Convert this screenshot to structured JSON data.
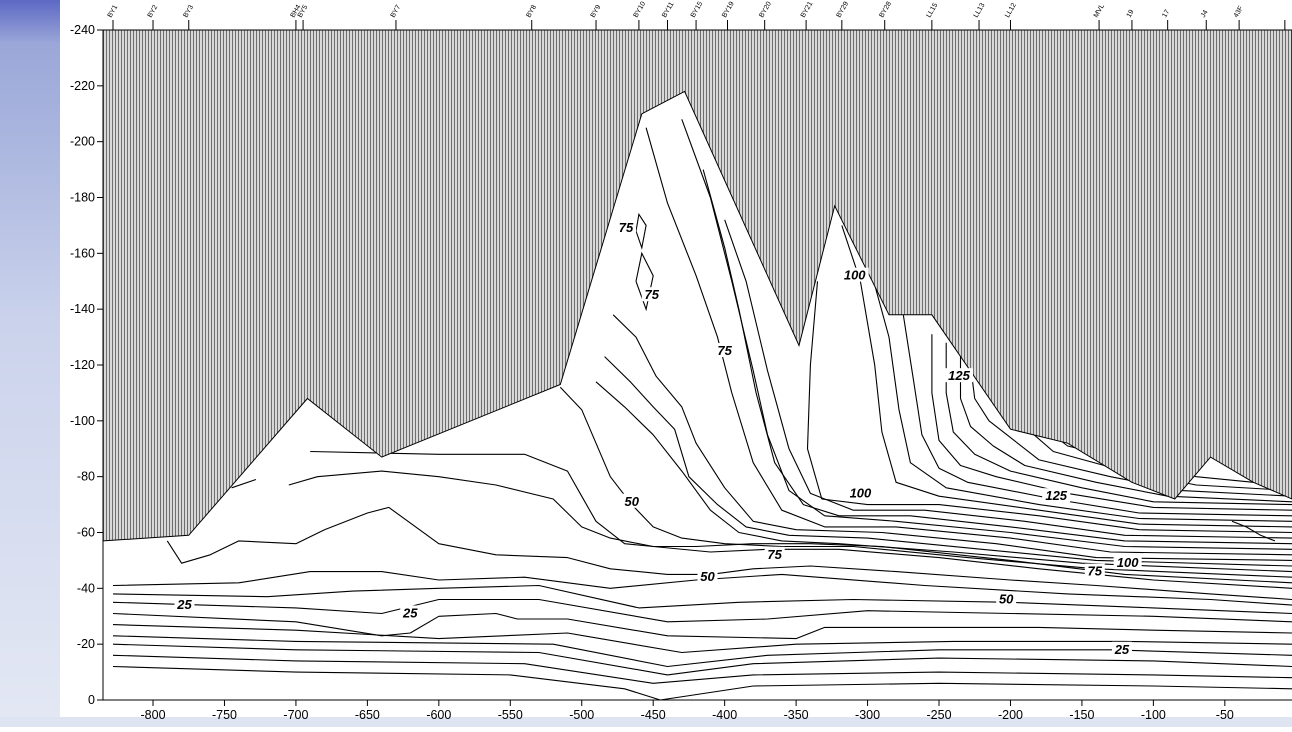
{
  "chart_data": {
    "type": "contour",
    "title": "",
    "xlabel": "",
    "ylabel": "",
    "xlim": [
      -835,
      -3
    ],
    "ylim": [
      -240,
      0
    ],
    "x_ticks": [
      -800,
      -750,
      -700,
      -650,
      -600,
      -550,
      -500,
      -450,
      -400,
      -350,
      -300,
      -250,
      -200,
      -150,
      -100,
      -50
    ],
    "y_ticks": [
      0,
      -20,
      -40,
      -60,
      -80,
      -100,
      -120,
      -140,
      -160,
      -180,
      -200,
      -220,
      -240
    ],
    "grid": false,
    "stations": [
      {
        "name": "BY1",
        "x": -828
      },
      {
        "name": "BY2",
        "x": -800
      },
      {
        "name": "BY3",
        "x": -775
      },
      {
        "name": "BH4",
        "x": -700
      },
      {
        "name": "BY5",
        "x": -695
      },
      {
        "name": "BY7",
        "x": -630
      },
      {
        "name": "BY8",
        "x": -535
      },
      {
        "name": "BY9",
        "x": -490
      },
      {
        "name": "BY10",
        "x": -460
      },
      {
        "name": "BY11",
        "x": -440
      },
      {
        "name": "BY15",
        "x": -420
      },
      {
        "name": "BY19",
        "x": -398
      },
      {
        "name": "BY20",
        "x": -372
      },
      {
        "name": "BY21",
        "x": -343
      },
      {
        "name": "BY29",
        "x": -318
      },
      {
        "name": "BY28",
        "x": -288
      },
      {
        "name": "LL15",
        "x": -255
      },
      {
        "name": "LL13",
        "x": -222
      },
      {
        "name": "LL12",
        "x": -200
      },
      {
        "name": "MVL",
        "x": -138
      },
      {
        "name": "19",
        "x": -115
      },
      {
        "name": "17",
        "x": -90
      },
      {
        "name": "J4",
        "x": -63
      },
      {
        "name": "43F",
        "x": -40
      },
      {
        "name": "",
        "x": -8
      }
    ],
    "bottom": [
      [
        -835,
        -57
      ],
      [
        -775,
        -59
      ],
      [
        -692,
        -108
      ],
      [
        -640,
        -87
      ],
      [
        -515,
        -113
      ],
      [
        -458,
        -210
      ],
      [
        -428,
        -218
      ],
      [
        -348,
        -127
      ],
      [
        -323,
        -177
      ],
      [
        -285,
        -138
      ],
      [
        -255,
        -138
      ],
      [
        -200,
        -97
      ],
      [
        -160,
        -92
      ],
      [
        -115,
        -78
      ],
      [
        -85,
        -72
      ],
      [
        -60,
        -87
      ],
      [
        -30,
        -78
      ],
      [
        -3,
        -72
      ],
      [
        -3,
        -240
      ],
      [
        -835,
        -240
      ]
    ],
    "contour_labels": [
      {
        "text": "25",
        "x": -778,
        "y": -34
      },
      {
        "text": "25",
        "x": -620,
        "y": -31
      },
      {
        "text": "25",
        "x": -122,
        "y": -18
      },
      {
        "text": "50",
        "x": -412,
        "y": -44
      },
      {
        "text": "50",
        "x": -203,
        "y": -36
      },
      {
        "text": "50",
        "x": -465,
        "y": -71
      },
      {
        "text": "75",
        "x": -365,
        "y": -52
      },
      {
        "text": "75",
        "x": -141,
        "y": -46
      },
      {
        "text": "75",
        "x": -400,
        "y": -125
      },
      {
        "text": "75",
        "x": -451,
        "y": -145
      },
      {
        "text": "75",
        "x": -469,
        "y": -169
      },
      {
        "text": "100",
        "x": -118,
        "y": -49
      },
      {
        "text": "100",
        "x": -305,
        "y": -74
      },
      {
        "text": "100",
        "x": -309,
        "y": -152
      },
      {
        "text": "125",
        "x": -168,
        "y": -73
      },
      {
        "text": "125",
        "x": -236,
        "y": -116
      }
    ],
    "colors": {
      "axis": "#000000",
      "contour": "#000000",
      "bottom_fill": "#9c9c9c",
      "left_band": "#6a75c8"
    }
  }
}
